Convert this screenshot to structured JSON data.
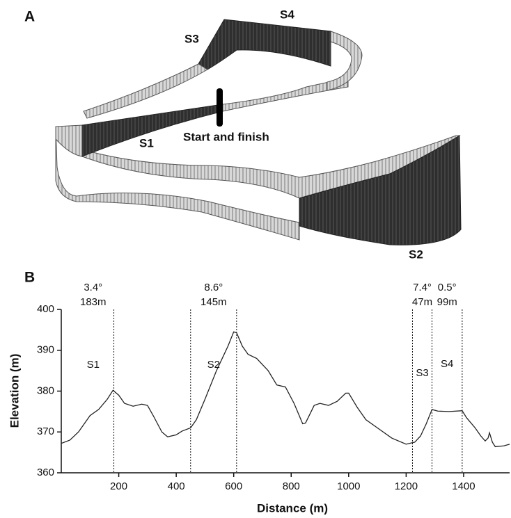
{
  "panel_a": {
    "panel_label": "A",
    "labels": {
      "s1": "S1",
      "s2": "S2",
      "s3": "S3",
      "s4": "S4",
      "start": "Start and finish"
    }
  },
  "chart_data": {
    "type": "line",
    "panel_label": "B",
    "x_label": "Distance (m)",
    "y_label": "Elevation (m)",
    "x": [
      0,
      30,
      60,
      80,
      100,
      130,
      160,
      180,
      200,
      220,
      250,
      280,
      300,
      320,
      350,
      370,
      400,
      420,
      450,
      470,
      500,
      540,
      580,
      600,
      610,
      630,
      650,
      680,
      720,
      750,
      780,
      810,
      840,
      850,
      880,
      900,
      930,
      960,
      990,
      1000,
      1030,
      1060,
      1100,
      1150,
      1200,
      1230,
      1250,
      1270,
      1290,
      1310,
      1350,
      1395,
      1410,
      1440,
      1460,
      1475,
      1485,
      1490,
      1500,
      1510,
      1540,
      1560
    ],
    "values": [
      367.2,
      368,
      370,
      372,
      374,
      375.5,
      378,
      380.2,
      379,
      377,
      376.3,
      376.8,
      376.5,
      374,
      370,
      368.8,
      369.3,
      370.2,
      371,
      373,
      378,
      385,
      391,
      394.5,
      394.3,
      391,
      389,
      388,
      385,
      381.5,
      381,
      377,
      372,
      372.2,
      376.5,
      377,
      376.5,
      377.5,
      379.5,
      379.5,
      376,
      373,
      371,
      368.5,
      367,
      367.5,
      369,
      372,
      375.5,
      375.1,
      375,
      375.2,
      373.5,
      371,
      369,
      367.8,
      368.5,
      369.8,
      367.5,
      366.4,
      366.6,
      367
    ],
    "color": "#222222",
    "xlim": [
      0,
      1560
    ],
    "ylim": [
      360,
      400
    ],
    "xticks": [
      200,
      400,
      600,
      800,
      1000,
      1200,
      1400
    ],
    "yticks": [
      360,
      370,
      380,
      390,
      400
    ],
    "dividers": [
      183,
      450,
      610,
      1222,
      1290,
      1395
    ],
    "sections": [
      {
        "name": "S1",
        "grade": "3.4°",
        "length": "183m"
      },
      {
        "name": "S2",
        "grade": "8.6°",
        "length": "145m"
      },
      {
        "name": "S3",
        "grade": "7.4°",
        "length": "47m"
      },
      {
        "name": "S4",
        "grade": "0.5°",
        "length": "99m"
      }
    ]
  }
}
